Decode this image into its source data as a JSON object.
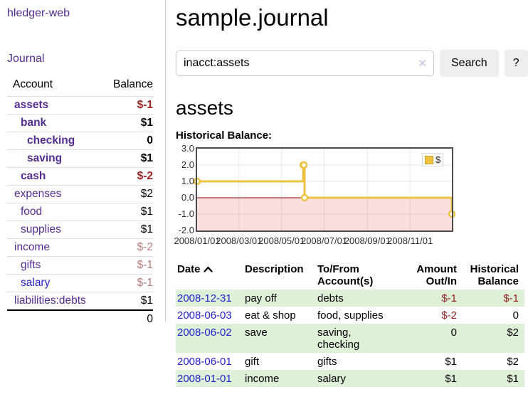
{
  "app": {
    "brand": "hledger-web",
    "nav_journal": "Journal"
  },
  "header": {
    "title": "sample.journal"
  },
  "search": {
    "value": "inacct:assets",
    "clear_icon": "✕",
    "search_button": "Search",
    "help_button": "?"
  },
  "account_page": {
    "title": "assets",
    "chart_heading": "Historical Balance:"
  },
  "colors": {
    "link_purple": "#542c92",
    "link_blue": "#2222cc",
    "negative_strong": "#9c2424",
    "negative_soft": "#b87d7d",
    "row_stripe_green": "#dff0d8",
    "series_gold": "#edc240",
    "negative_region_pink": "#fbdede",
    "zero_line": "#8b0000"
  },
  "sidebar": {
    "col_account": "Account",
    "col_balance": "Balance",
    "accounts": [
      {
        "name": "assets",
        "balance": "$-1",
        "level": 1,
        "current": true,
        "balance_class": "neg-strong",
        "link": "purple"
      },
      {
        "name": "bank",
        "balance": "$1",
        "level": 2,
        "current": true,
        "balance_class": "",
        "link": "purple"
      },
      {
        "name": "checking",
        "balance": "0",
        "level": 3,
        "current": true,
        "balance_class": "",
        "link": "purple"
      },
      {
        "name": "saving",
        "balance": "$1",
        "level": 3,
        "current": true,
        "balance_class": "",
        "link": "purple"
      },
      {
        "name": "cash",
        "balance": "$-2",
        "level": 2,
        "current": true,
        "balance_class": "neg-strong",
        "link": "purple"
      },
      {
        "name": "expenses",
        "balance": "$2",
        "level": 1,
        "current": false,
        "balance_class": "",
        "link": "purple"
      },
      {
        "name": "food",
        "balance": "$1",
        "level": 2,
        "current": false,
        "balance_class": "",
        "link": "purple"
      },
      {
        "name": "supplies",
        "balance": "$1",
        "level": 2,
        "current": false,
        "balance_class": "",
        "link": "purple"
      },
      {
        "name": "income",
        "balance": "$-2",
        "level": 1,
        "current": false,
        "balance_class": "neg-soft",
        "link": "purple"
      },
      {
        "name": "gifts",
        "balance": "$-1",
        "level": 2,
        "current": false,
        "balance_class": "neg-soft",
        "link": "purple"
      },
      {
        "name": "salary",
        "balance": "$-1",
        "level": 2,
        "current": false,
        "balance_class": "neg-soft",
        "link": "blue"
      },
      {
        "name": "liabilities:debts",
        "balance": "$1",
        "level": 1,
        "current": false,
        "balance_class": "",
        "link": "purple"
      }
    ],
    "total": "0"
  },
  "chart_data": {
    "type": "line",
    "step": true,
    "title": "Historical Balance:",
    "x_range": [
      "2008-01-01",
      "2008-12-31"
    ],
    "ylim": [
      -2,
      3
    ],
    "grid": true,
    "legend_position": "top-right",
    "y_ticks": [
      {
        "v": 3,
        "label": "3.0"
      },
      {
        "v": 2,
        "label": "2.0"
      },
      {
        "v": 1,
        "label": "1.0"
      },
      {
        "v": 0,
        "label": "0.0"
      },
      {
        "v": -1,
        "label": "-1.0"
      },
      {
        "v": -2,
        "label": "-2.0"
      }
    ],
    "x_ticks": [
      {
        "date": "2008-01-01",
        "label": "2008/01/01"
      },
      {
        "date": "2008-03-01",
        "label": "2008/03/01"
      },
      {
        "date": "2008-05-01",
        "label": "2008/05/01"
      },
      {
        "date": "2008-07-01",
        "label": "2008/07/01"
      },
      {
        "date": "2008-09-01",
        "label": "2008/09/01"
      },
      {
        "date": "2008-11-01",
        "label": "2008/11/01"
      }
    ],
    "series": [
      {
        "name": "$",
        "color": "#edc240",
        "points": [
          [
            "2008-01-01",
            1
          ],
          [
            "2008-06-01",
            2
          ],
          [
            "2008-06-02",
            2
          ],
          [
            "2008-06-03",
            0
          ],
          [
            "2008-12-31",
            -1
          ]
        ]
      }
    ]
  },
  "register": {
    "columns": [
      {
        "label": "Date"
      },
      {
        "label": "Description"
      },
      {
        "label": "To/From Account(s)"
      },
      {
        "label": "Amount Out/In"
      },
      {
        "label": "Historical Balance"
      }
    ],
    "rows": [
      {
        "date": "2008-12-31",
        "description": "pay off",
        "accounts": "debts",
        "amount": "$-1",
        "amount_negative": true,
        "balance": "$-1",
        "balance_negative": true
      },
      {
        "date": "2008-06-03",
        "description": "eat & shop",
        "accounts": "food, supplies",
        "amount": "$-2",
        "amount_negative": true,
        "balance": "0",
        "balance_negative": false
      },
      {
        "date": "2008-06-02",
        "description": "save",
        "accounts": "saving, checking",
        "amount": "0",
        "amount_negative": false,
        "balance": "$2",
        "balance_negative": false
      },
      {
        "date": "2008-06-01",
        "description": "gift",
        "accounts": "gifts",
        "amount": "$1",
        "amount_negative": false,
        "balance": "$2",
        "balance_negative": false
      },
      {
        "date": "2008-01-01",
        "description": "income",
        "accounts": "salary",
        "amount": "$1",
        "amount_negative": false,
        "balance": "$1",
        "balance_negative": false
      }
    ]
  }
}
